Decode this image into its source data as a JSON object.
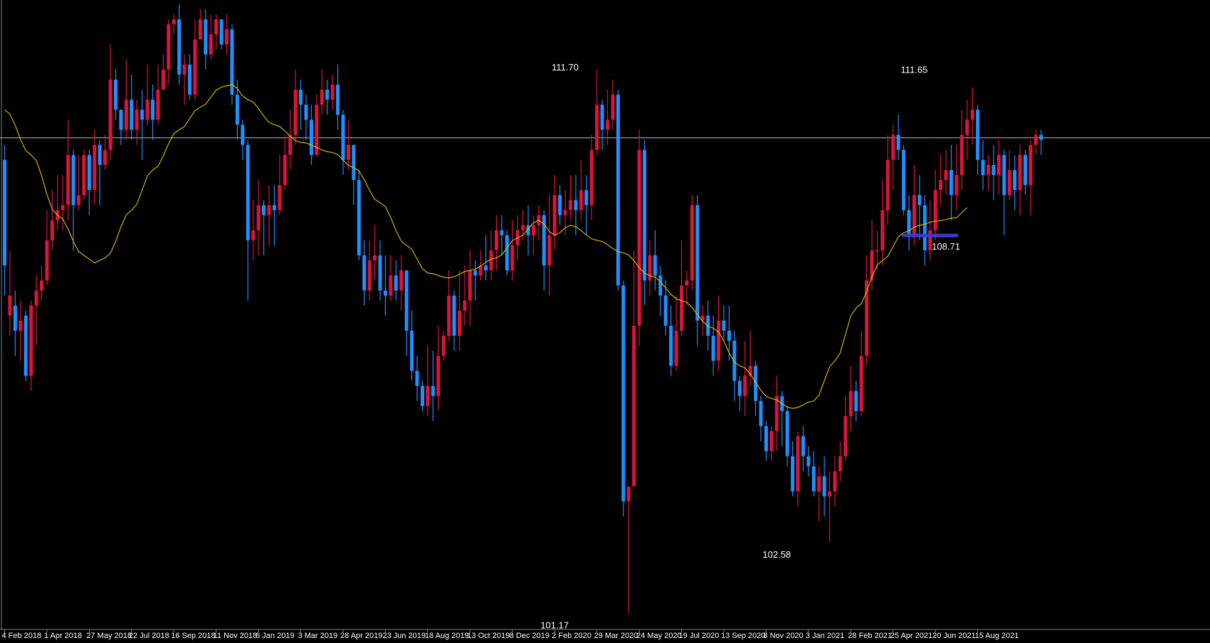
{
  "chart_data": {
    "type": "candlestick",
    "timeframe": "weekly",
    "colors": {
      "background": "#000000",
      "bull": "#dc143c",
      "bear": "#1e90ff",
      "moving_average": "#e6c200",
      "current_price_line": "#c0c0c0",
      "support_marker": "#3a3ac8",
      "text": "#ffffff"
    },
    "ylim": [
      100.85,
      113.3
    ],
    "current_price": 110.64,
    "x_ticks": [
      "4 Feb 2018",
      "1 Apr 2018",
      "27 May 2018",
      "22 Jul 2018",
      "16 Sep 2018",
      "11 Nov 2018",
      "6 Jan 2019",
      "3 Mar 2019",
      "28 Apr 2019",
      "23 Jun 2019",
      "18 Aug 2019",
      "13 Oct 2019",
      "8 Dec 2019",
      "2 Feb 2020",
      "29 Mar 2020",
      "24 May 2020",
      "19 Jul 2020",
      "13 Sep 2020",
      "8 Nov 2020",
      "3 Jan 2021",
      "28 Feb 2021",
      "25 Apr 2021",
      "20 Jun 2021",
      "15 Aug 2021"
    ],
    "annotations": [
      {
        "label": "111.70",
        "week_index": 106,
        "price": 111.7,
        "place": "above"
      },
      {
        "label": "101.17",
        "week_index": 104,
        "price": 101.17,
        "place": "below"
      },
      {
        "label": "102.58",
        "week_index": 146,
        "price": 102.58,
        "place": "below"
      },
      {
        "label": "111.65",
        "week_index": 172,
        "price": 111.65,
        "place": "above"
      },
      {
        "label": "108.71",
        "week_index": 178,
        "price": 108.71,
        "place": "below"
      }
    ],
    "support_level": {
      "price": 108.71,
      "from_index": 170,
      "to_index": 180
    },
    "ma_anchors": [
      [
        0,
        111.2
      ],
      [
        5,
        110.3
      ],
      [
        10,
        109.1
      ],
      [
        15,
        108.3
      ],
      [
        17,
        108.15
      ],
      [
        19,
        108.25
      ],
      [
        24,
        109.2
      ],
      [
        28,
        110.0
      ],
      [
        33,
        110.8
      ],
      [
        37,
        111.25
      ],
      [
        41,
        111.65
      ],
      [
        43,
        111.7
      ],
      [
        46,
        111.4
      ],
      [
        51,
        110.9
      ],
      [
        56,
        110.55
      ],
      [
        62,
        110.35
      ],
      [
        66,
        110.05
      ],
      [
        71,
        109.35
      ],
      [
        76,
        108.5
      ],
      [
        80,
        107.95
      ],
      [
        84,
        107.85
      ],
      [
        88,
        108.0
      ],
      [
        93,
        108.25
      ],
      [
        97,
        108.65
      ],
      [
        101,
        109.0
      ],
      [
        104,
        108.7
      ],
      [
        107,
        108.9
      ],
      [
        112,
        108.6
      ],
      [
        117,
        108.35
      ],
      [
        122,
        107.9
      ],
      [
        128,
        107.4
      ],
      [
        134,
        106.85
      ],
      [
        139,
        106.1
      ],
      [
        145,
        105.45
      ],
      [
        149,
        105.25
      ],
      [
        153,
        105.4
      ],
      [
        157,
        106.2
      ],
      [
        161,
        107.25
      ],
      [
        166,
        108.2
      ],
      [
        170,
        108.75
      ],
      [
        173,
        108.9
      ],
      [
        176,
        108.98
      ],
      [
        180,
        109.05
      ],
      [
        182,
        109.25
      ]
    ],
    "candles": [
      [
        110.2,
        108.1,
        110.5,
        107.5
      ],
      [
        107.1,
        107.5,
        108.4,
        106.7
      ],
      [
        107.3,
        106.8,
        107.6,
        106.3
      ],
      [
        106.8,
        107.0,
        107.4,
        106.2
      ],
      [
        107.1,
        105.9,
        107.2,
        105.8
      ],
      [
        105.9,
        107.3,
        107.4,
        105.6
      ],
      [
        107.3,
        107.6,
        107.9,
        106.5
      ],
      [
        107.6,
        107.8,
        108.1,
        107.4
      ],
      [
        107.8,
        108.6,
        109.2,
        107.7
      ],
      [
        108.6,
        109.0,
        109.6,
        108.4
      ],
      [
        109.0,
        109.2,
        109.9,
        108.8
      ],
      [
        109.2,
        109.3,
        109.9,
        108.8
      ],
      [
        109.3,
        110.3,
        111.0,
        109.0
      ],
      [
        110.3,
        109.3,
        110.4,
        108.4
      ],
      [
        109.3,
        109.5,
        110.3,
        109.2
      ],
      [
        109.5,
        110.3,
        110.4,
        109.4
      ],
      [
        110.3,
        109.6,
        110.4,
        109.1
      ],
      [
        109.6,
        110.5,
        110.8,
        109.3
      ],
      [
        110.5,
        110.1,
        110.6,
        109.3
      ],
      [
        110.1,
        110.4,
        110.7,
        110.0
      ],
      [
        110.4,
        111.8,
        112.5,
        110.2
      ],
      [
        111.8,
        111.2,
        112.0,
        111.0
      ],
      [
        111.2,
        110.8,
        111.2,
        110.5
      ],
      [
        110.8,
        111.4,
        112.2,
        110.6
      ],
      [
        111.4,
        110.8,
        111.9,
        110.6
      ],
      [
        110.8,
        111.2,
        111.4,
        110.5
      ],
      [
        111.2,
        111.0,
        111.6,
        110.2
      ],
      [
        111.0,
        111.4,
        112.1,
        110.9
      ],
      [
        111.4,
        111.0,
        111.7,
        110.6
      ],
      [
        111.0,
        111.6,
        112.1,
        110.9
      ],
      [
        111.6,
        112.0,
        112.3,
        111.6
      ],
      [
        112.0,
        112.9,
        113.0,
        111.7
      ],
      [
        112.9,
        113.0,
        113.1,
        112.7
      ],
      [
        113.0,
        111.9,
        113.3,
        111.7
      ],
      [
        111.9,
        112.1,
        112.3,
        111.3
      ],
      [
        112.1,
        111.5,
        112.3,
        111.4
      ],
      [
        111.5,
        112.6,
        113.0,
        111.4
      ],
      [
        112.6,
        113.0,
        113.2,
        112.6
      ],
      [
        113.0,
        112.3,
        113.2,
        112.0
      ],
      [
        112.3,
        112.7,
        113.1,
        112.2
      ],
      [
        112.7,
        113.0,
        113.1,
        112.4
      ],
      [
        113.0,
        112.5,
        113.0,
        112.4
      ],
      [
        112.5,
        112.8,
        113.1,
        112.3
      ],
      [
        112.8,
        111.5,
        112.9,
        111.3
      ],
      [
        111.5,
        110.9,
        111.8,
        110.6
      ],
      [
        110.9,
        110.5,
        111.0,
        110.2
      ],
      [
        110.5,
        108.6,
        110.6,
        107.4
      ],
      [
        108.6,
        108.8,
        109.4,
        108.2
      ],
      [
        108.8,
        109.3,
        109.8,
        108.3
      ],
      [
        109.3,
        109.1,
        109.4,
        108.3
      ],
      [
        109.1,
        109.3,
        109.7,
        108.5
      ],
      [
        109.3,
        109.2,
        109.7,
        108.5
      ],
      [
        109.2,
        109.7,
        110.3,
        109.1
      ],
      [
        109.7,
        110.3,
        110.7,
        109.6
      ],
      [
        110.3,
        110.7,
        111.2,
        110.0
      ],
      [
        110.7,
        111.6,
        112.0,
        110.5
      ],
      [
        111.6,
        111.3,
        111.8,
        110.8
      ],
      [
        111.3,
        111.0,
        111.5,
        110.6
      ],
      [
        111.0,
        110.3,
        111.3,
        110.1
      ],
      [
        110.3,
        111.3,
        111.5,
        110.3
      ],
      [
        111.3,
        111.6,
        112.0,
        111.1
      ],
      [
        111.6,
        111.4,
        111.8,
        111.1
      ],
      [
        111.4,
        111.7,
        111.9,
        111.2
      ],
      [
        111.7,
        111.1,
        112.1,
        110.8
      ],
      [
        111.1,
        110.2,
        111.2,
        109.9
      ],
      [
        110.2,
        110.5,
        111.0,
        110.0
      ],
      [
        110.5,
        109.8,
        110.5,
        109.3
      ],
      [
        109.8,
        108.3,
        110.0,
        108.2
      ],
      [
        108.3,
        107.6,
        108.6,
        107.3
      ],
      [
        107.6,
        108.2,
        108.6,
        107.4
      ],
      [
        108.2,
        108.3,
        108.9,
        107.8
      ],
      [
        108.3,
        107.6,
        108.6,
        107.4
      ],
      [
        107.6,
        107.5,
        108.3,
        107.1
      ],
      [
        107.5,
        107.9,
        108.3,
        107.4
      ],
      [
        107.9,
        107.6,
        108.2,
        107.4
      ],
      [
        107.6,
        108.0,
        108.3,
        107.2
      ],
      [
        108.0,
        106.8,
        108.0,
        106.3
      ],
      [
        106.8,
        106.0,
        107.2,
        105.8
      ],
      [
        106.0,
        105.7,
        106.3,
        105.4
      ],
      [
        105.7,
        105.3,
        105.8,
        105.2
      ],
      [
        105.3,
        105.7,
        106.5,
        105.1
      ],
      [
        105.7,
        105.5,
        106.4,
        105.0
      ],
      [
        105.5,
        106.3,
        106.9,
        105.2
      ],
      [
        106.3,
        106.7,
        106.8,
        106.2
      ],
      [
        106.7,
        107.5,
        108.0,
        106.6
      ],
      [
        107.5,
        106.7,
        107.6,
        106.4
      ],
      [
        106.7,
        107.2,
        108.0,
        106.4
      ],
      [
        107.2,
        107.4,
        108.1,
        106.9
      ],
      [
        107.4,
        108.0,
        108.4,
        106.9
      ],
      [
        108.0,
        107.9,
        108.2,
        107.4
      ],
      [
        107.9,
        108.1,
        108.4,
        107.8
      ],
      [
        108.1,
        108.0,
        108.7,
        107.8
      ],
      [
        108.0,
        108.4,
        108.8,
        107.8
      ],
      [
        108.4,
        108.8,
        109.1,
        108.0
      ],
      [
        108.8,
        108.7,
        109.1,
        108.3
      ],
      [
        108.7,
        108.0,
        108.8,
        107.9
      ],
      [
        108.0,
        108.5,
        109.0,
        107.8
      ],
      [
        108.5,
        108.8,
        109.1,
        108.2
      ],
      [
        108.8,
        108.9,
        109.2,
        108.6
      ],
      [
        108.9,
        108.7,
        109.3,
        108.3
      ],
      [
        108.7,
        108.9,
        109.1,
        108.3
      ],
      [
        108.9,
        109.1,
        109.3,
        108.6
      ],
      [
        109.1,
        108.1,
        109.2,
        107.6
      ],
      [
        108.1,
        108.7,
        109.5,
        107.5
      ],
      [
        108.7,
        109.5,
        109.9,
        108.4
      ],
      [
        109.5,
        109.1,
        109.7,
        108.9
      ],
      [
        109.1,
        109.2,
        109.6,
        108.7
      ],
      [
        109.2,
        109.4,
        109.9,
        109.0
      ],
      [
        109.4,
        109.2,
        109.9,
        108.7
      ],
      [
        109.2,
        109.6,
        110.2,
        109.0
      ],
      [
        109.6,
        109.3,
        109.9,
        108.7
      ],
      [
        109.3,
        110.4,
        110.7,
        109.0
      ],
      [
        110.4,
        111.3,
        112.0,
        110.3
      ],
      [
        111.3,
        110.8,
        111.4,
        110.4
      ],
      [
        110.8,
        111.0,
        111.6,
        110.5
      ],
      [
        111.0,
        111.5,
        111.8,
        110.8
      ],
      [
        111.5,
        107.7,
        111.6,
        107.6
      ],
      [
        107.7,
        103.4,
        107.8,
        103.1
      ],
      [
        103.4,
        103.7,
        103.7,
        101.17
      ],
      [
        103.7,
        106.9,
        108.4,
        103.8
      ],
      [
        106.9,
        110.4,
        110.8,
        106.5
      ],
      [
        110.4,
        107.8,
        110.6,
        107.3
      ],
      [
        107.8,
        108.3,
        108.6,
        107.5
      ],
      [
        108.3,
        107.9,
        108.8,
        107.6
      ],
      [
        107.9,
        107.5,
        108.1,
        107.1
      ],
      [
        107.5,
        106.9,
        107.8,
        106.7
      ],
      [
        106.9,
        106.1,
        107.3,
        105.9
      ],
      [
        106.1,
        106.8,
        107.5,
        106.0
      ],
      [
        106.8,
        107.7,
        108.6,
        106.7
      ],
      [
        107.7,
        107.8,
        108.0,
        107.3
      ],
      [
        107.8,
        109.3,
        109.5,
        107.6
      ],
      [
        109.3,
        107.0,
        109.5,
        106.5
      ],
      [
        107.0,
        107.1,
        107.3,
        106.7
      ],
      [
        107.1,
        106.7,
        107.4,
        106.4
      ],
      [
        106.7,
        106.2,
        107.1,
        105.9
      ],
      [
        106.2,
        107.0,
        107.5,
        106.0
      ],
      [
        107.0,
        106.8,
        107.3,
        106.6
      ],
      [
        106.8,
        106.6,
        107.3,
        106.2
      ],
      [
        106.6,
        105.8,
        106.8,
        105.4
      ],
      [
        105.8,
        105.5,
        105.9,
        105.2
      ],
      [
        105.5,
        105.9,
        106.6,
        105.1
      ],
      [
        105.9,
        106.1,
        106.8,
        105.7
      ],
      [
        106.1,
        105.4,
        106.2,
        105.1
      ],
      [
        105.4,
        104.9,
        105.5,
        104.6
      ],
      [
        104.9,
        104.4,
        105.0,
        104.2
      ],
      [
        104.4,
        104.8,
        104.9,
        104.2
      ],
      [
        104.8,
        105.5,
        105.9,
        104.4
      ],
      [
        105.5,
        105.2,
        105.6,
        104.5
      ],
      [
        105.2,
        104.3,
        105.3,
        104.1
      ],
      [
        104.3,
        103.6,
        104.6,
        103.5
      ],
      [
        103.6,
        104.7,
        104.8,
        103.3
      ],
      [
        104.7,
        104.3,
        104.9,
        104.0
      ],
      [
        104.3,
        104.1,
        104.5,
        103.9
      ],
      [
        104.1,
        103.6,
        104.4,
        103.5
      ],
      [
        103.6,
        103.9,
        104.1,
        103.0
      ],
      [
        103.9,
        103.5,
        104.3,
        103.1
      ],
      [
        103.5,
        103.6,
        104.0,
        102.6
      ],
      [
        103.6,
        104.0,
        104.3,
        103.3
      ],
      [
        104.0,
        104.3,
        104.6,
        103.8
      ],
      [
        104.3,
        105.1,
        105.5,
        104.2
      ],
      [
        105.1,
        105.6,
        106.1,
        104.8
      ],
      [
        105.6,
        105.2,
        105.8,
        105.0
      ],
      [
        105.2,
        106.3,
        106.8,
        105.1
      ],
      [
        106.3,
        107.8,
        108.3,
        106.1
      ],
      [
        107.8,
        108.4,
        109.0,
        107.6
      ],
      [
        108.4,
        108.4,
        108.8,
        108.0
      ],
      [
        108.4,
        109.2,
        109.8,
        108.1
      ],
      [
        109.2,
        110.2,
        110.7,
        108.9
      ],
      [
        110.2,
        110.7,
        110.9,
        109.6
      ],
      [
        110.7,
        110.4,
        111.1,
        110.2
      ],
      [
        110.4,
        109.2,
        110.5,
        109.1
      ],
      [
        109.2,
        108.7,
        109.5,
        108.4
      ],
      [
        108.7,
        109.5,
        110.1,
        108.5
      ],
      [
        109.5,
        109.3,
        109.9,
        108.6
      ],
      [
        109.3,
        108.4,
        109.5,
        108.1
      ],
      [
        108.4,
        108.8,
        109.4,
        108.2
      ],
      [
        108.8,
        109.6,
        110.0,
        108.6
      ],
      [
        109.6,
        109.8,
        110.3,
        109.3
      ],
      [
        109.8,
        110.0,
        110.4,
        109.5
      ],
      [
        110.0,
        109.5,
        110.5,
        109.0
      ],
      [
        109.5,
        109.9,
        110.5,
        109.2
      ],
      [
        109.9,
        110.7,
        111.2,
        109.6
      ],
      [
        110.7,
        111.0,
        111.4,
        110.2
      ],
      [
        111.0,
        111.2,
        111.65,
        110.5
      ],
      [
        111.2,
        110.2,
        111.3,
        109.9
      ],
      [
        110.2,
        109.9,
        110.6,
        109.6
      ],
      [
        109.9,
        110.1,
        110.3,
        109.6
      ],
      [
        110.1,
        109.9,
        110.5,
        109.4
      ],
      [
        109.9,
        110.3,
        110.6,
        109.5
      ],
      [
        110.3,
        109.5,
        110.4,
        108.7
      ],
      [
        109.5,
        110.0,
        110.4,
        109.4
      ],
      [
        110.0,
        109.6,
        110.3,
        109.2
      ],
      [
        109.6,
        110.3,
        110.5,
        109.1
      ],
      [
        110.3,
        109.7,
        110.4,
        109.5
      ],
      [
        109.7,
        110.5,
        110.6,
        109.1
      ],
      [
        110.5,
        110.7,
        110.8,
        110.3
      ],
      [
        110.7,
        110.6,
        110.8,
        110.3
      ]
    ]
  }
}
